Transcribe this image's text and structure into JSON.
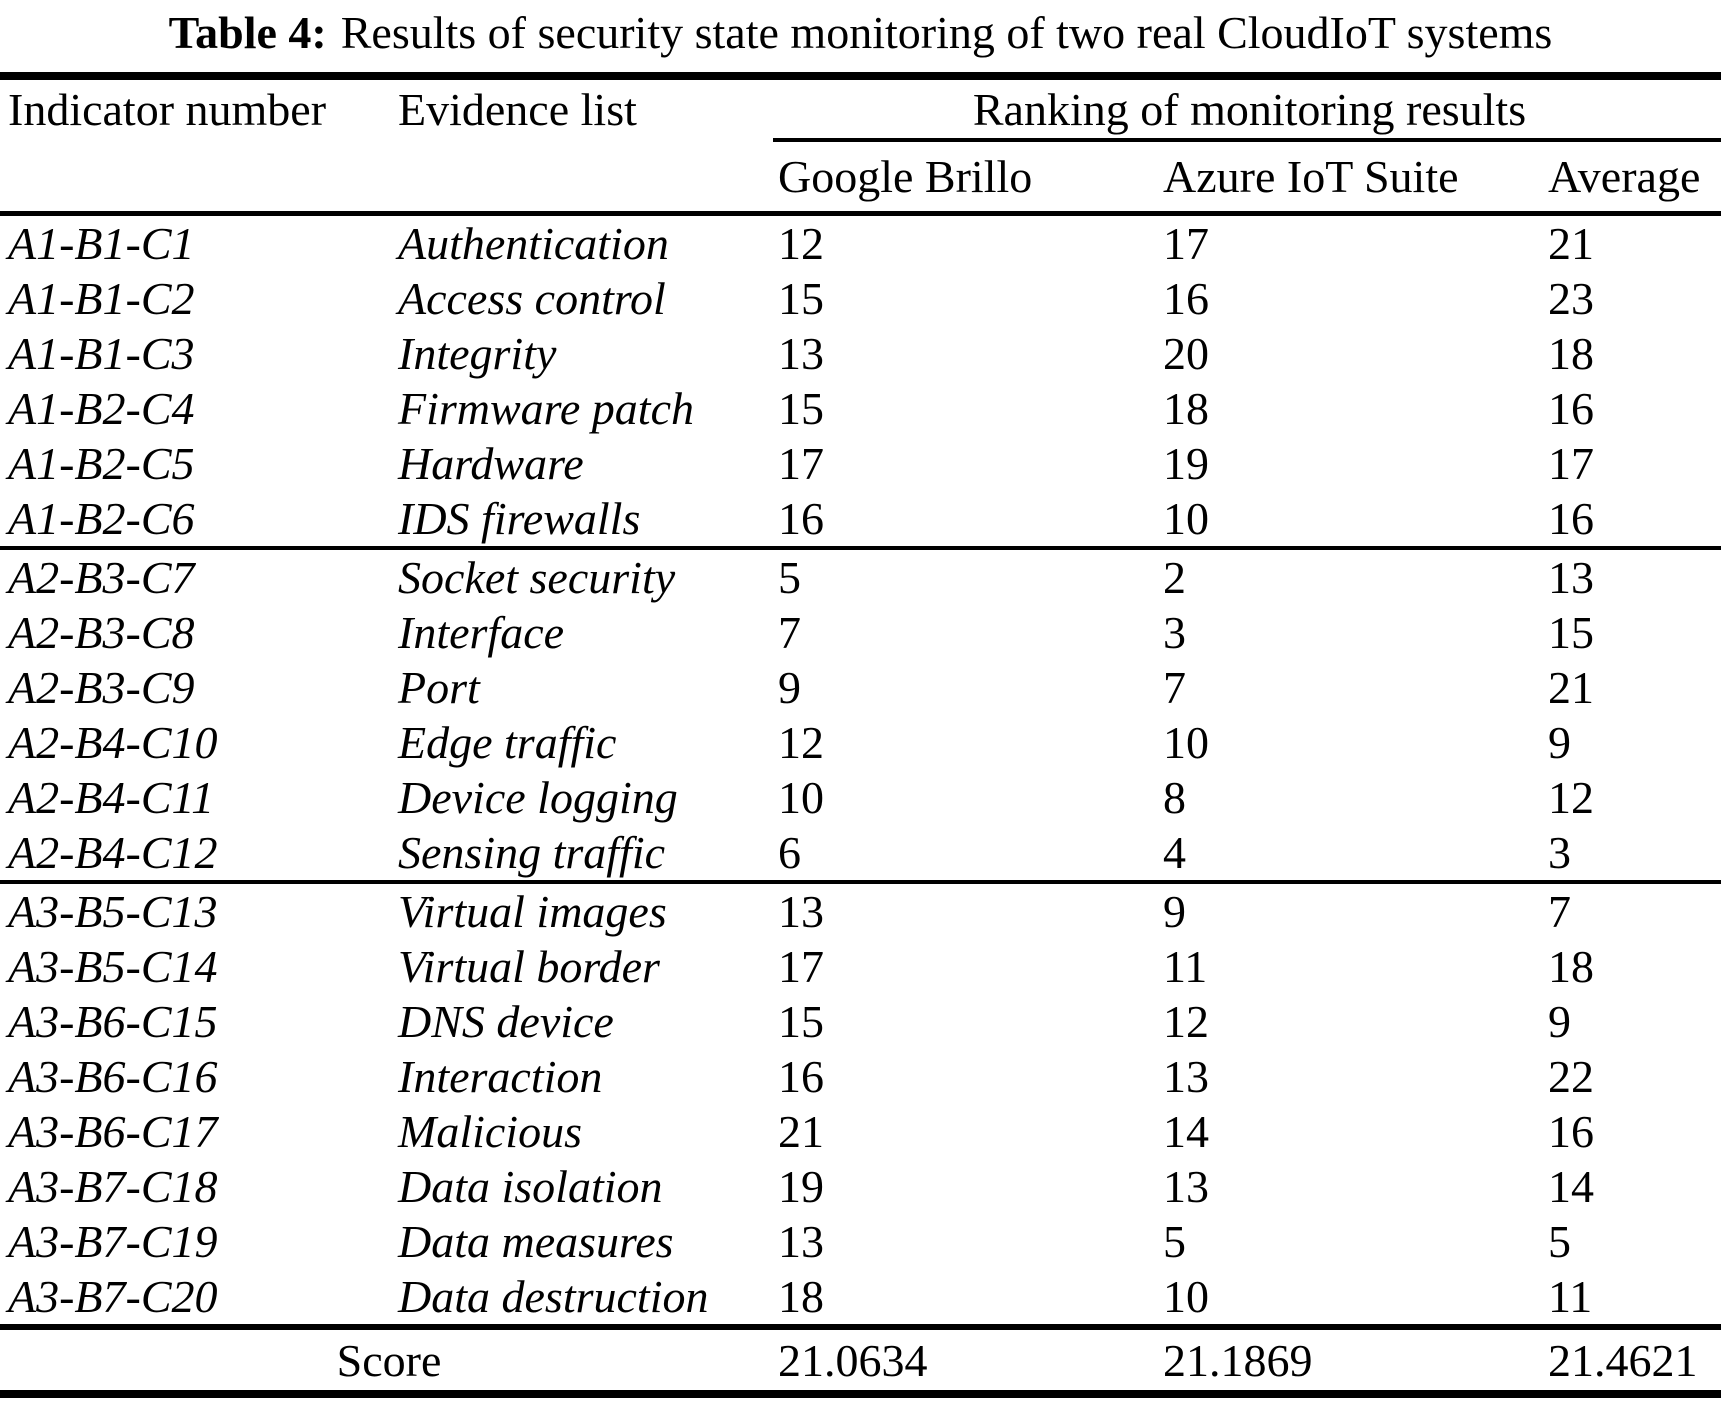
{
  "caption": {
    "label": "Table 4:",
    "text": "Results of security state monitoring of two real CloudIoT systems"
  },
  "table": {
    "headers": {
      "indicator": "Indicator number",
      "evidence": "Evidence list",
      "ranking": "Ranking of monitoring results",
      "ranking_columns": [
        "Google Brillo",
        "Azure IoT Suite",
        "Average"
      ]
    },
    "groups": [
      {
        "rows": [
          {
            "indicator": "A1-B1-C1",
            "evidence": "Authentication",
            "google_brillo": "12",
            "azure_iot_suite": "17",
            "average": "21"
          },
          {
            "indicator": "A1-B1-C2",
            "evidence": "Access control",
            "google_brillo": "15",
            "azure_iot_suite": "16",
            "average": "23"
          },
          {
            "indicator": "A1-B1-C3",
            "evidence": "Integrity",
            "google_brillo": "13",
            "azure_iot_suite": "20",
            "average": "18"
          },
          {
            "indicator": "A1-B2-C4",
            "evidence": "Firmware patch",
            "google_brillo": "15",
            "azure_iot_suite": "18",
            "average": "16"
          },
          {
            "indicator": "A1-B2-C5",
            "evidence": "Hardware",
            "google_brillo": "17",
            "azure_iot_suite": "19",
            "average": "17"
          },
          {
            "indicator": "A1-B2-C6",
            "evidence": "IDS firewalls",
            "google_brillo": "16",
            "azure_iot_suite": "10",
            "average": "16"
          }
        ]
      },
      {
        "rows": [
          {
            "indicator": "A2-B3-C7",
            "evidence": "Socket security",
            "google_brillo": "5",
            "azure_iot_suite": "2",
            "average": "13"
          },
          {
            "indicator": "A2-B3-C8",
            "evidence": "Interface",
            "google_brillo": "7",
            "azure_iot_suite": "3",
            "average": "15"
          },
          {
            "indicator": "A2-B3-C9",
            "evidence": "Port",
            "google_brillo": "9",
            "azure_iot_suite": "7",
            "average": "21"
          },
          {
            "indicator": "A2-B4-C10",
            "evidence": "Edge traffic",
            "google_brillo": "12",
            "azure_iot_suite": "10",
            "average": "9"
          },
          {
            "indicator": "A2-B4-C11",
            "evidence": "Device logging",
            "google_brillo": "10",
            "azure_iot_suite": "8",
            "average": "12"
          },
          {
            "indicator": "A2-B4-C12",
            "evidence": "Sensing traffic",
            "google_brillo": "6",
            "azure_iot_suite": "4",
            "average": "3"
          }
        ]
      },
      {
        "rows": [
          {
            "indicator": "A3-B5-C13",
            "evidence": "Virtual images",
            "google_brillo": "13",
            "azure_iot_suite": "9",
            "average": "7"
          },
          {
            "indicator": "A3-B5-C14",
            "evidence": "Virtual border",
            "google_brillo": "17",
            "azure_iot_suite": "11",
            "average": "18"
          },
          {
            "indicator": "A3-B6-C15",
            "evidence": "DNS device",
            "google_brillo": "15",
            "azure_iot_suite": "12",
            "average": "9"
          },
          {
            "indicator": "A3-B6-C16",
            "evidence": "Interaction",
            "google_brillo": "16",
            "azure_iot_suite": "13",
            "average": "22"
          },
          {
            "indicator": "A3-B6-C17",
            "evidence": "Malicious",
            "google_brillo": "21",
            "azure_iot_suite": "14",
            "average": "16"
          },
          {
            "indicator": "A3-B7-C18",
            "evidence": "Data isolation",
            "google_brillo": "19",
            "azure_iot_suite": "13",
            "average": "14"
          },
          {
            "indicator": "A3-B7-C19",
            "evidence": "Data measures",
            "google_brillo": "13",
            "azure_iot_suite": "5",
            "average": "5"
          },
          {
            "indicator": "A3-B7-C20",
            "evidence": "Data destruction",
            "google_brillo": "18",
            "azure_iot_suite": "10",
            "average": "11"
          }
        ]
      }
    ],
    "score": {
      "label": "Score",
      "values": [
        "21.0634",
        "21.1869",
        "21.4621"
      ]
    }
  }
}
